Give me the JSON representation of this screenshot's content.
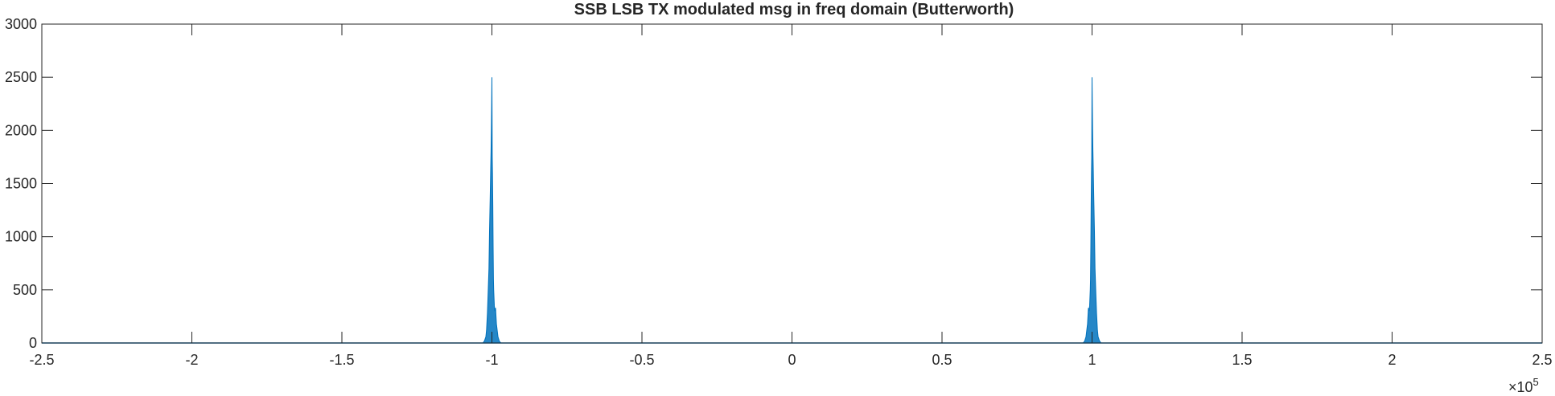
{
  "chart_data": {
    "type": "line",
    "title": "SSB LSB TX modulated msg in freq domain (Butterworth)",
    "xlabel": "",
    "ylabel": "",
    "xlim": [
      -250000,
      250000
    ],
    "ylim": [
      0,
      3000
    ],
    "x_exponent_label": {
      "base": "×10",
      "power": "5"
    },
    "x_ticks": [
      -2.5,
      -2,
      -1.5,
      -1,
      -0.5,
      0,
      0.5,
      1,
      1.5,
      2,
      2.5
    ],
    "x_tick_labels": [
      "-2.5",
      "-2",
      "-1.5",
      "-1",
      "-0.5",
      "0",
      "0.5",
      "1",
      "1.5",
      "2",
      "2.5"
    ],
    "y_ticks": [
      0,
      500,
      1000,
      1500,
      2000,
      2500,
      3000
    ],
    "y_tick_labels": [
      "0",
      "500",
      "1000",
      "1500",
      "2000",
      "2500",
      "3000"
    ],
    "grid": false,
    "series": [
      {
        "color": "#0072bd",
        "x": [
          -103000,
          -102500,
          -102000,
          -101800,
          -101500,
          -101300,
          -101000,
          -100800,
          -100600,
          -100400,
          -100300,
          -100200,
          -100100,
          -100000,
          -99900,
          -99800,
          -99700,
          -99600,
          -99500,
          -99400,
          -99200,
          -99000,
          -98800,
          -98500,
          -98000,
          -97500,
          -97000,
          97000,
          97500,
          98000,
          98500,
          98800,
          99000,
          99200,
          99400,
          99500,
          99600,
          99700,
          99800,
          99900,
          100000,
          100100,
          100200,
          100300,
          100400,
          100600,
          100800,
          101000,
          101300,
          101500,
          101800,
          102000,
          102500,
          103000
        ],
        "y": [
          0,
          20,
          60,
          120,
          280,
          450,
          700,
          1050,
          1350,
          1650,
          1800,
          2000,
          2200,
          2500,
          1750,
          1600,
          1300,
          900,
          600,
          500,
          350,
          300,
          330,
          180,
          60,
          15,
          0,
          0,
          15,
          60,
          180,
          330,
          300,
          350,
          500,
          600,
          900,
          1300,
          1600,
          1750,
          2500,
          2200,
          2000,
          1800,
          1650,
          1350,
          1050,
          700,
          450,
          280,
          120,
          60,
          20,
          0
        ]
      }
    ]
  }
}
